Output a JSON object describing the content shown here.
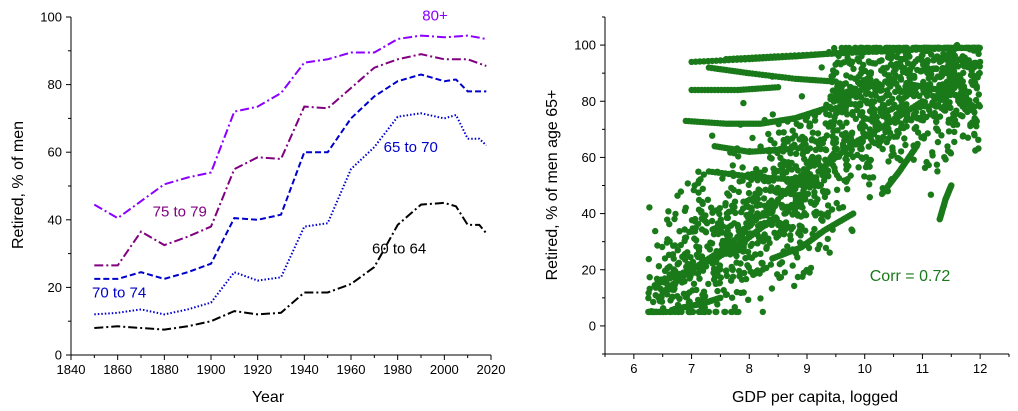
{
  "chart_data": [
    {
      "type": "line",
      "xlabel": "Year",
      "ylabel": "Retired, % of men",
      "xlim": [
        1840,
        2020
      ],
      "ylim": [
        0,
        100
      ],
      "xticks": [
        "1840",
        "1860",
        "1880",
        "1900",
        "1920",
        "1940",
        "1960",
        "1980",
        "2000",
        "2020"
      ],
      "yticks": [
        "0",
        "20",
        "40",
        "60",
        "80",
        "100"
      ],
      "grid": false,
      "series": [
        {
          "name": "80+",
          "color": "#8B00FF",
          "line_style": "dash-dot",
          "x": [
            1850,
            1860,
            1870,
            1880,
            1890,
            1900,
            1910,
            1920,
            1930,
            1940,
            1950,
            1960,
            1970,
            1980,
            1990,
            2000,
            2010,
            2018
          ],
          "y": [
            44.5,
            40.5,
            45.5,
            50.5,
            52.5,
            54,
            72,
            73.5,
            77.5,
            86.5,
            87.5,
            89.5,
            89.5,
            93.5,
            94.5,
            94,
            94.5,
            93.5
          ]
        },
        {
          "name": "75 to 79",
          "color": "#800080",
          "line_style": "dash-dot",
          "x": [
            1850,
            1860,
            1870,
            1880,
            1890,
            1900,
            1910,
            1920,
            1930,
            1940,
            1950,
            1960,
            1970,
            1980,
            1990,
            2000,
            2010,
            2018
          ],
          "y": [
            26.5,
            26.5,
            36.5,
            32.5,
            35,
            38,
            55,
            58.5,
            58,
            73.5,
            73,
            79,
            85,
            87.5,
            89,
            87.5,
            87.5,
            85.5
          ]
        },
        {
          "name": "65 to 70",
          "color": "#0000CC",
          "line_style": "dashed",
          "x": [
            1850,
            1860,
            1870,
            1880,
            1890,
            1900,
            1910,
            1920,
            1930,
            1940,
            1950,
            1960,
            1970,
            1980,
            1990,
            2000,
            2005,
            2010,
            2018
          ],
          "y": [
            22.5,
            22.5,
            24.5,
            22.5,
            24.5,
            27,
            40.5,
            40,
            41.5,
            60,
            60,
            70,
            76.5,
            81,
            83,
            81,
            81.5,
            78,
            78
          ]
        },
        {
          "name": "70 to 74",
          "color": "#0000CC",
          "line_style": "dotted",
          "x": [
            1850,
            1860,
            1870,
            1880,
            1890,
            1900,
            1910,
            1920,
            1930,
            1940,
            1950,
            1960,
            1970,
            1980,
            1990,
            2000,
            2005,
            2010,
            2015,
            2018
          ],
          "y": [
            12,
            12.5,
            13.5,
            12,
            13.5,
            15.5,
            24.5,
            22,
            23,
            38,
            39,
            55,
            61.5,
            70.5,
            71.5,
            70,
            71,
            64,
            64,
            62
          ]
        },
        {
          "name": "60 to 64",
          "color": "#000000",
          "line_style": "dash-dot",
          "x": [
            1850,
            1860,
            1870,
            1880,
            1890,
            1900,
            1910,
            1920,
            1930,
            1940,
            1950,
            1960,
            1970,
            1980,
            1990,
            2000,
            2005,
            2010,
            2015,
            2018
          ],
          "y": [
            8,
            8.5,
            8,
            7.5,
            8.5,
            10,
            13,
            12,
            12.5,
            18.5,
            18.5,
            21,
            26,
            38.5,
            44.5,
            45,
            44,
            38.5,
            38.5,
            36
          ]
        }
      ]
    },
    {
      "type": "scatter",
      "xlabel": "GDP per capita, logged",
      "ylabel": "Retired, % of men age 65+",
      "xlim": [
        5.5,
        12.5
      ],
      "ylim": [
        -10,
        110
      ],
      "xticks": [
        "6",
        "7",
        "8",
        "9",
        "10",
        "11",
        "12"
      ],
      "yticks": [
        "0",
        "20",
        "40",
        "60",
        "80",
        "100"
      ],
      "grid": false,
      "color": "#1A7A1A",
      "annotation": "Corr = 0.72",
      "generator": {
        "note": "dense cloud approximated",
        "count": 1700,
        "seed": 7,
        "x_range": [
          6.25,
          12.0
        ],
        "y_min": 5,
        "y_max": 99
      },
      "trajectories": [
        {
          "x": [
            6.4,
            7.2,
            7.9,
            8.4
          ],
          "y": [
            15,
            22,
            30,
            38
          ]
        },
        {
          "x": [
            6.5,
            7.0,
            7.6,
            8.5,
            9.2
          ],
          "y": [
            12,
            20,
            28,
            45,
            60
          ]
        },
        {
          "x": [
            7.6,
            8.5,
            9.5,
            10.5,
            11.6
          ],
          "y": [
            95,
            96,
            97,
            98,
            99
          ]
        },
        {
          "x": [
            7.0,
            8.0,
            8.8,
            9.4,
            10.2
          ],
          "y": [
            94,
            95,
            96,
            97,
            98
          ]
        },
        {
          "x": [
            7.3,
            8.0,
            8.8,
            9.5
          ],
          "y": [
            92,
            90,
            88,
            87
          ]
        },
        {
          "x": [
            7.0,
            7.8,
            8.5
          ],
          "y": [
            84,
            84,
            85
          ]
        },
        {
          "x": [
            6.9,
            7.6,
            8.2,
            8.8,
            9.4
          ],
          "y": [
            73,
            72,
            72,
            74,
            78
          ]
        },
        {
          "x": [
            10.8,
            11.3,
            11.6,
            11.9
          ],
          "y": [
            86,
            84,
            82,
            78
          ]
        },
        {
          "x": [
            10.3,
            10.6,
            10.9
          ],
          "y": [
            47,
            55,
            64
          ]
        },
        {
          "x": [
            11.3,
            11.4,
            11.5
          ],
          "y": [
            38,
            45,
            50
          ]
        },
        {
          "x": [
            11.3,
            11.5,
            11.6
          ],
          "y": [
            94,
            97,
            100
          ]
        },
        {
          "x": [
            7.4,
            8.0,
            8.7
          ],
          "y": [
            64,
            62,
            63
          ]
        },
        {
          "x": [
            7.3,
            8.1,
            8.9
          ],
          "y": [
            55,
            53,
            52
          ]
        },
        {
          "x": [
            6.7,
            7.2,
            7.5
          ],
          "y": [
            6,
            8,
            10
          ]
        },
        {
          "x": [
            8.4,
            8.9,
            9.3,
            9.8
          ],
          "y": [
            24,
            28,
            34,
            40
          ]
        },
        {
          "x": [
            9.2,
            9.8,
            10.4,
            11.0
          ],
          "y": [
            55,
            65,
            72,
            80
          ]
        }
      ]
    }
  ]
}
